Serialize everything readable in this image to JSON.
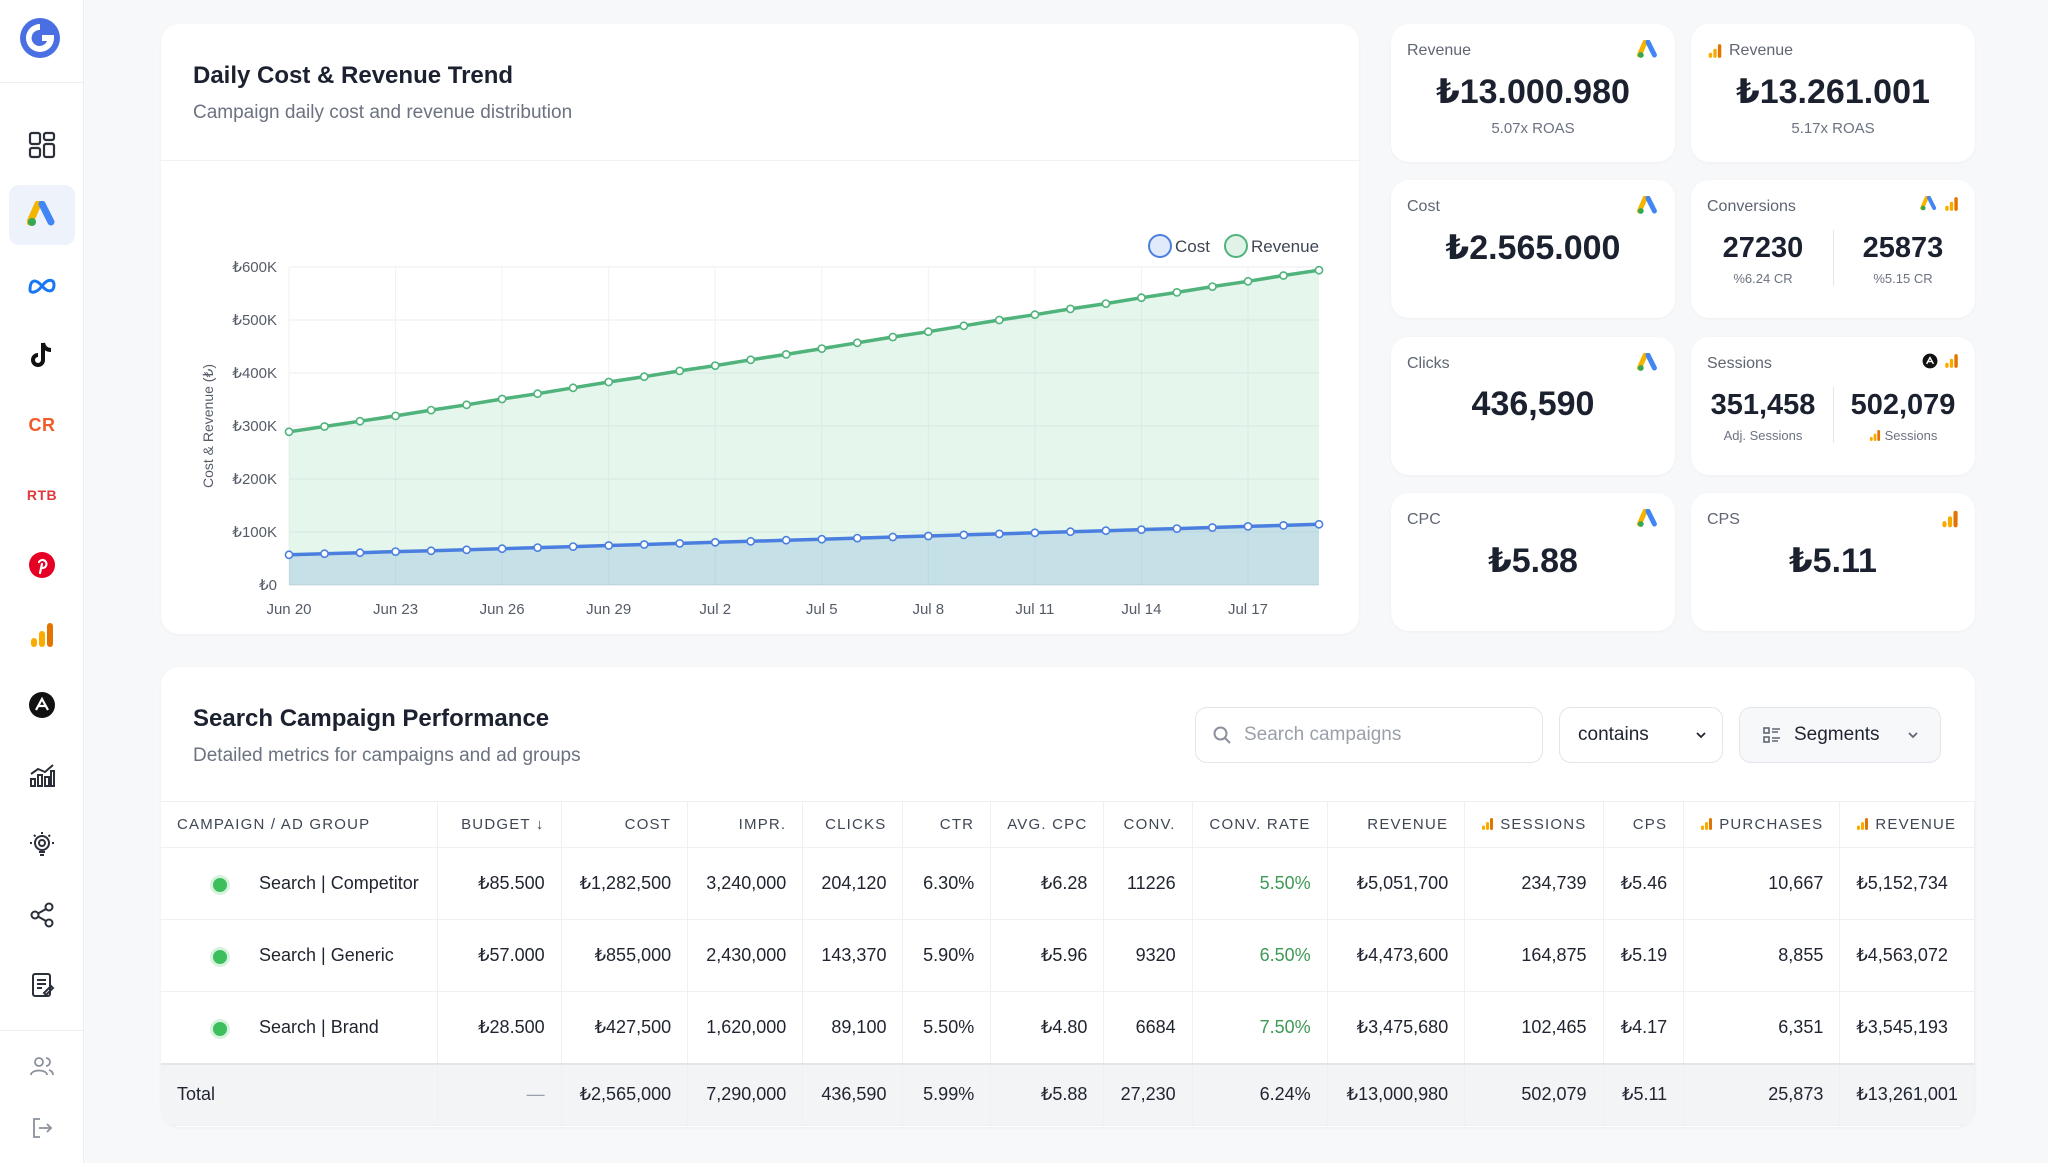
{
  "sidebar": {
    "items": [
      "dashboard",
      "google-ads",
      "meta",
      "tiktok",
      "criteo",
      "rtb",
      "pinterest",
      "google-analytics",
      "appsflyer",
      "reports",
      "insights",
      "share",
      "documents"
    ],
    "rtb_label": "RTB",
    "criteo_label": "CR",
    "bottom": [
      "users",
      "logout"
    ]
  },
  "chart_card": {
    "title": "Daily Cost & Revenue Trend",
    "subtitle": "Campaign daily cost and revenue distribution"
  },
  "chart_data": {
    "type": "line",
    "ylabel": "Cost & Revenue (₺)",
    "ylim": [
      0,
      600000
    ],
    "y_ticks": [
      "₺0",
      "₺100K",
      "₺200K",
      "₺300K",
      "₺400K",
      "₺500K",
      "₺600K"
    ],
    "x_ticks": [
      "Jun 20",
      "Jun 23",
      "Jun 26",
      "Jun 29",
      "Jul 2",
      "Jul 5",
      "Jul 8",
      "Jul 11",
      "Jul 14",
      "Jul 17"
    ],
    "x": [
      "Jun 20",
      "Jun 21",
      "Jun 22",
      "Jun 23",
      "Jun 24",
      "Jun 25",
      "Jun 26",
      "Jun 27",
      "Jun 28",
      "Jun 29",
      "Jun 30",
      "Jul 1",
      "Jul 2",
      "Jul 3",
      "Jul 4",
      "Jul 5",
      "Jul 6",
      "Jul 7",
      "Jul 8",
      "Jul 9",
      "Jul 10",
      "Jul 11",
      "Jul 12",
      "Jul 13",
      "Jul 14",
      "Jul 15",
      "Jul 16",
      "Jul 17",
      "Jul 18",
      "Jul 19"
    ],
    "legend_position": "top-right",
    "series": [
      {
        "name": "Cost",
        "color": "#4a7fe0",
        "values": [
          57000,
          59000,
          61000,
          63000,
          64500,
          66500,
          68500,
          70500,
          72500,
          74500,
          76500,
          78500,
          80500,
          82500,
          84500,
          86500,
          88500,
          90500,
          92500,
          94500,
          96500,
          98500,
          100500,
          102500,
          104500,
          106500,
          108500,
          110500,
          112500,
          114500
        ]
      },
      {
        "name": "Revenue",
        "color": "#4fb37b",
        "values": [
          289000,
          299000,
          309000,
          319000,
          330000,
          340000,
          351000,
          361000,
          372000,
          383000,
          393000,
          404000,
          414000,
          425000,
          435000,
          446000,
          457000,
          468000,
          478000,
          489000,
          500000,
          510000,
          521000,
          531000,
          542000,
          552000,
          563000,
          573000,
          584000,
          594000
        ]
      }
    ]
  },
  "kpis": {
    "revenue_ads": {
      "label": "Revenue",
      "value": "₺13.000.980",
      "foot": "5.07x ROAS"
    },
    "revenue_ga": {
      "label": "Revenue",
      "value": "₺13.261.001",
      "foot": "5.17x ROAS"
    },
    "cost": {
      "label": "Cost",
      "value": "₺2.565.000"
    },
    "conversions": {
      "label": "Conversions",
      "a_value": "27230",
      "a_foot": "%6.24 CR",
      "b_value": "25873",
      "b_foot": "%5.15 CR"
    },
    "clicks": {
      "label": "Clicks",
      "value": "436,590"
    },
    "sessions": {
      "label": "Sessions",
      "a_value": "351,458",
      "a_foot": "Adj. Sessions",
      "b_value": "502,079",
      "b_foot": "Sessions"
    },
    "cpc": {
      "label": "CPC",
      "value": "₺5.88"
    },
    "cps": {
      "label": "CPS",
      "value": "₺5.11"
    }
  },
  "table_card": {
    "title": "Search Campaign Performance",
    "subtitle": "Detailed metrics for campaigns and ad groups",
    "search_placeholder": "Search campaigns",
    "filter_mode": "contains",
    "segments_label": "Segments",
    "columns": [
      "CAMPAIGN / AD GROUP",
      "BUDGET ↓",
      "COST",
      "IMPR.",
      "CLICKS",
      "CTR",
      "AVG. CPC",
      "CONV.",
      "CONV. RATE",
      "REVENUE",
      "SESSIONS",
      "CPS",
      "PURCHASES",
      "REVENUE"
    ],
    "rows": [
      [
        "Search | Competitor",
        "₺85.500",
        "₺1,282,500",
        "3,240,000",
        "204,120",
        "6.30%",
        "₺6.28",
        "11226",
        "5.50%",
        "₺5,051,700",
        "234,739",
        "₺5.46",
        "10,667",
        "₺5,152,734"
      ],
      [
        "Search | Generic",
        "₺57.000",
        "₺855,000",
        "2,430,000",
        "143,370",
        "5.90%",
        "₺5.96",
        "9320",
        "6.50%",
        "₺4,473,600",
        "164,875",
        "₺5.19",
        "8,855",
        "₺4,563,072"
      ],
      [
        "Search | Brand",
        "₺28.500",
        "₺427,500",
        "1,620,000",
        "89,100",
        "5.50%",
        "₺4.80",
        "6684",
        "7.50%",
        "₺3,475,680",
        "102,465",
        "₺4.17",
        "6,351",
        "₺3,545,193"
      ]
    ],
    "total": [
      "Total",
      "—",
      "₺2,565,000",
      "7,290,000",
      "436,590",
      "5.99%",
      "₺5.88",
      "27,230",
      "6.24%",
      "₺13,000,980",
      "502,079",
      "₺5.11",
      "25,873",
      "₺13,261,001"
    ]
  }
}
